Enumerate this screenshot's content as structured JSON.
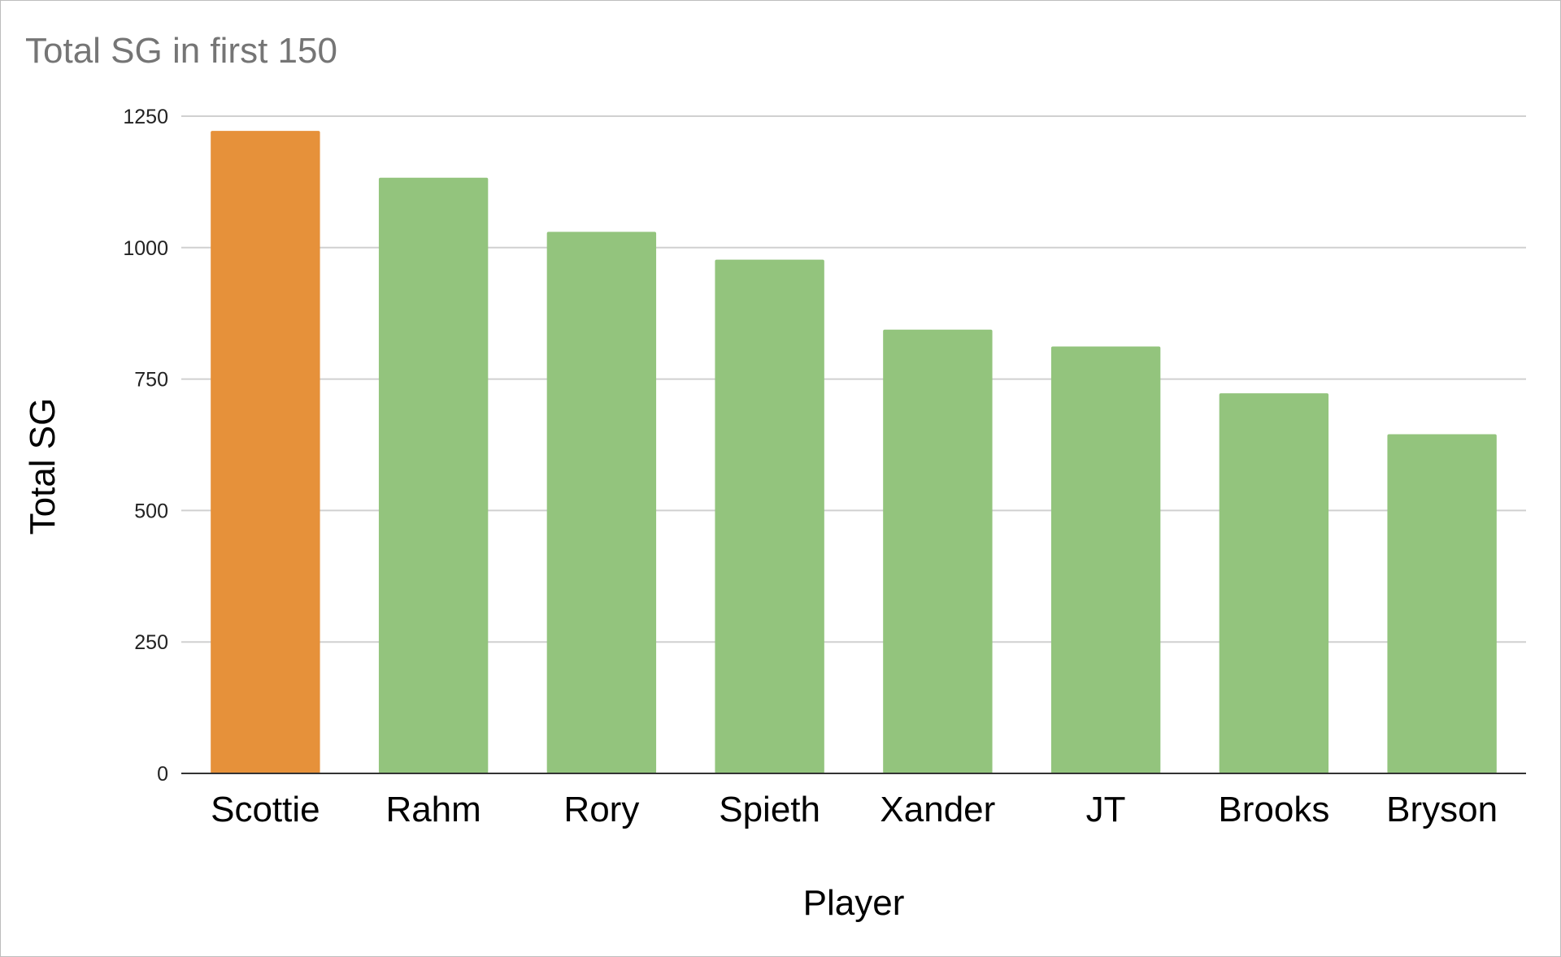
{
  "chart_data": {
    "type": "bar",
    "title": "Total SG in first 150",
    "xlabel": "Player",
    "ylabel": "Total SG",
    "categories": [
      "Scottie",
      "Rahm",
      "Rory",
      "Spieth",
      "Xander",
      "JT",
      "Brooks",
      "Bryson"
    ],
    "values": [
      1222,
      1133,
      1030,
      977,
      844,
      812,
      723,
      645
    ],
    "highlight_category": "Scottie",
    "colors": {
      "highlight": "#E6913A",
      "default": "#93C47D",
      "grid": "#D0D0D0",
      "baseline": "#333333",
      "title": "#757575"
    },
    "ylim": [
      0,
      1250
    ],
    "yticks": [
      0,
      250,
      500,
      750,
      1000,
      1250
    ],
    "grid": true,
    "legend": "none"
  }
}
